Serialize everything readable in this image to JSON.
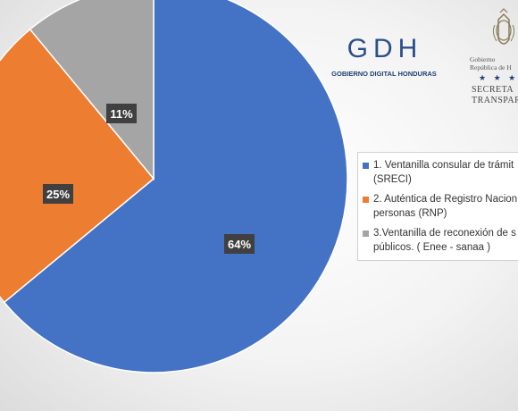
{
  "chart_data": {
    "type": "pie",
    "title": "",
    "slices": [
      {
        "label_lines": [
          "1. Ventanilla consular de trámit",
          "(SRECI)"
        ],
        "value": 64,
        "display": "64%",
        "color": "#4472c4"
      },
      {
        "label_lines": [
          "2. Auténtica de Registro Nacion",
          "personas (RNP)"
        ],
        "value": 25,
        "display": "25%",
        "color": "#ed7d31"
      },
      {
        "label_lines": [
          "3.Ventanilla de reconexión de s",
          "públicos. ( Enee - sanaa )"
        ],
        "value": 11,
        "display": "11%",
        "color": "#a5a5a5"
      }
    ],
    "legend_position": "right"
  },
  "logos": {
    "gdh": {
      "letters": "GDH",
      "subtitle": "GOBIERNO DIGITAL HONDURAS"
    },
    "gov": {
      "line1": "Gobierno",
      "line2": "República de H",
      "stars": "★ ★ ★",
      "sec1": "SECRETA",
      "sec2": "TRANSPAR"
    }
  }
}
